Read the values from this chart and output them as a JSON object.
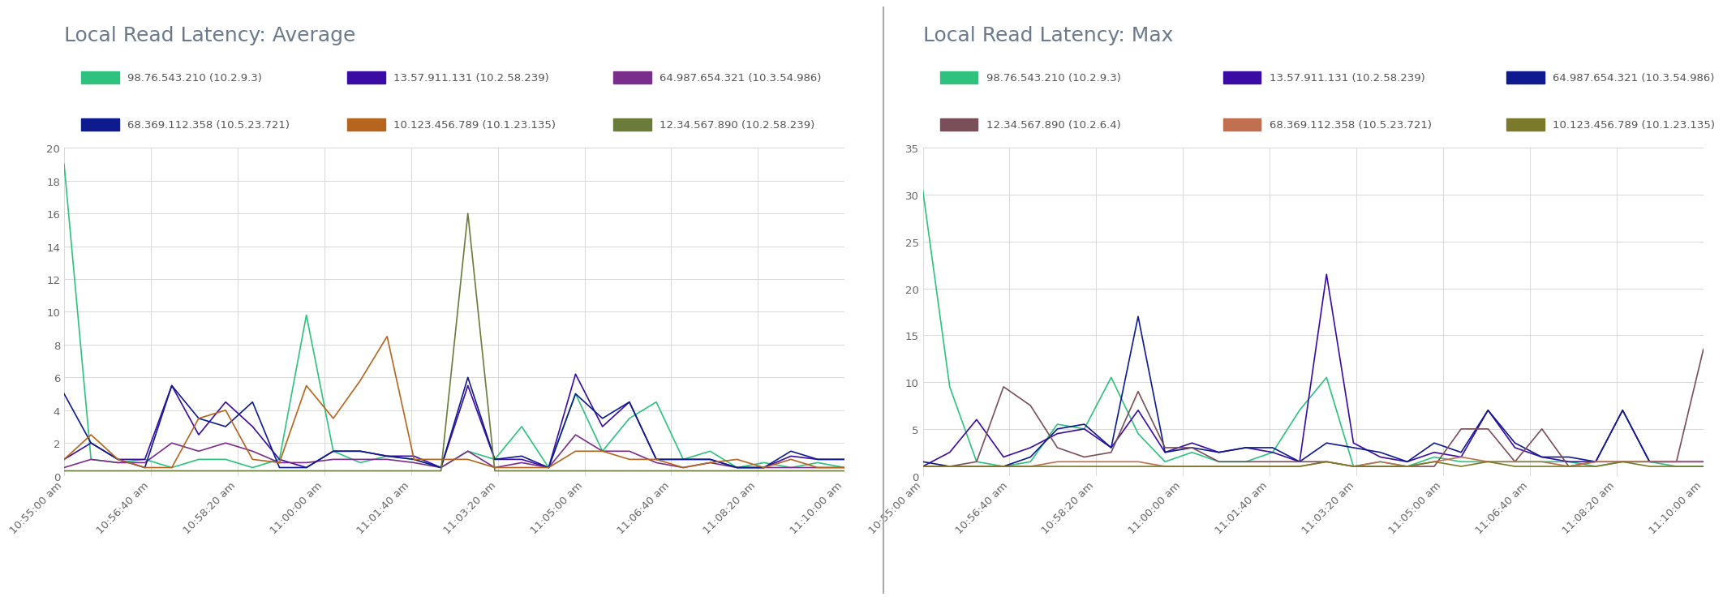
{
  "title_avg": "Local Read Latency: Average",
  "title_max": "Local Read Latency: Max",
  "title_color": "#6b7a8d",
  "background_color": "#ffffff",
  "grid_color": "#d8d8d8",
  "x_labels": [
    "10:55:00 am",
    "10:56:40 am",
    "10:58:20 am",
    "11:00:00 am",
    "11:01:40 am",
    "11:03:20 am",
    "11:05:00 am",
    "11:06:40 am",
    "11:08:20 am",
    "11:10:00 am"
  ],
  "avg_ylim": [
    0,
    20
  ],
  "avg_yticks": [
    0,
    2,
    4,
    6,
    8,
    10,
    12,
    14,
    16,
    18,
    20
  ],
  "max_ylim": [
    0,
    35
  ],
  "max_yticks": [
    0,
    5,
    10,
    15,
    20,
    25,
    30,
    35
  ],
  "legend_avg": [
    {
      "label": "98.76.543.210 (10.2.9.3)",
      "color": "#2ec27e"
    },
    {
      "label": "13.57.911.131 (10.2.58.239)",
      "color": "#3a0ca3"
    },
    {
      "label": "64.987.654.321 (10.3.54.986)",
      "color": "#7b2d8b"
    },
    {
      "label": "68.369.112.358 (10.5.23.721)",
      "color": "#0d1b8e"
    },
    {
      "label": "10.123.456.789 (10.1.23.135)",
      "color": "#b5651d"
    },
    {
      "label": "12.34.567.890 (10.2.58.239)",
      "color": "#6b7c3a"
    }
  ],
  "legend_max": [
    {
      "label": "98.76.543.210 (10.2.9.3)",
      "color": "#2ec27e"
    },
    {
      "label": "13.57.911.131 (10.2.58.239)",
      "color": "#3a0ca3"
    },
    {
      "label": "64.987.654.321 (10.3.54.986)",
      "color": "#0d1b8e"
    },
    {
      "label": "12.34.567.890 (10.2.6.4)",
      "color": "#7a4f5a"
    },
    {
      "label": "68.369.112.358 (10.5.23.721)",
      "color": "#c07050"
    },
    {
      "label": "10.123.456.789 (10.1.23.135)",
      "color": "#7a7a2a"
    }
  ],
  "avg_series": {
    "s0": [
      19.0,
      1.0,
      0.8,
      1.0,
      0.5,
      1.0,
      1.0,
      0.5,
      1.0,
      9.8,
      1.5,
      0.8,
      1.2,
      1.0,
      0.5,
      1.5,
      1.0,
      3.0,
      0.5,
      5.0,
      1.5,
      3.5,
      4.5,
      1.0,
      1.5,
      0.5,
      0.8,
      0.5,
      0.8,
      0.5
    ],
    "s1": [
      1.0,
      2.0,
      1.0,
      1.0,
      5.5,
      2.5,
      4.5,
      3.0,
      1.0,
      0.5,
      1.5,
      1.5,
      1.2,
      1.2,
      0.5,
      5.5,
      1.0,
      1.0,
      0.5,
      6.2,
      3.0,
      4.5,
      1.0,
      1.0,
      1.0,
      0.5,
      0.5,
      1.2,
      1.0,
      1.0
    ],
    "s2": [
      0.5,
      1.0,
      0.8,
      0.8,
      2.0,
      1.5,
      2.0,
      1.5,
      0.8,
      0.8,
      1.0,
      1.0,
      1.0,
      0.8,
      0.5,
      1.5,
      0.5,
      0.8,
      0.5,
      2.5,
      1.5,
      1.5,
      0.8,
      0.5,
      0.8,
      0.5,
      0.5,
      0.5,
      0.5,
      0.5
    ],
    "s3": [
      5.0,
      2.0,
      1.0,
      0.5,
      5.5,
      3.5,
      3.0,
      4.5,
      0.5,
      0.5,
      1.5,
      1.5,
      1.2,
      1.0,
      0.5,
      6.0,
      1.0,
      1.2,
      0.5,
      5.0,
      3.5,
      4.5,
      1.0,
      1.0,
      1.0,
      0.5,
      0.5,
      1.5,
      1.0,
      1.0
    ],
    "s4": [
      1.0,
      2.5,
      1.0,
      0.5,
      0.5,
      3.5,
      4.0,
      1.0,
      0.8,
      5.5,
      3.5,
      5.8,
      8.5,
      1.0,
      1.0,
      1.0,
      0.5,
      0.5,
      0.5,
      1.5,
      1.5,
      1.0,
      1.0,
      0.5,
      0.8,
      1.0,
      0.5,
      1.0,
      0.5,
      0.5
    ],
    "s5": [
      0.3,
      0.3,
      0.3,
      0.3,
      0.3,
      0.3,
      0.3,
      0.3,
      0.3,
      0.3,
      0.3,
      0.3,
      0.3,
      0.3,
      0.3,
      16.0,
      0.3,
      0.3,
      0.3,
      0.3,
      0.3,
      0.3,
      0.3,
      0.3,
      0.3,
      0.3,
      0.3,
      0.3,
      0.3,
      0.3
    ]
  },
  "max_series": {
    "s0": [
      30.5,
      9.5,
      1.5,
      1.0,
      1.5,
      5.5,
      5.0,
      10.5,
      4.5,
      1.5,
      2.5,
      1.5,
      1.5,
      2.5,
      7.0,
      10.5,
      1.0,
      1.5,
      1.0,
      2.0,
      1.5,
      1.5,
      1.5,
      1.5,
      1.5,
      1.0,
      1.5,
      1.5,
      1.0,
      1.0
    ],
    "s1": [
      1.0,
      2.5,
      6.0,
      2.0,
      3.0,
      4.5,
      5.0,
      3.0,
      7.0,
      2.5,
      3.5,
      2.5,
      3.0,
      2.5,
      1.5,
      21.5,
      3.5,
      2.0,
      1.5,
      2.5,
      2.0,
      7.0,
      3.0,
      2.0,
      1.5,
      1.5,
      7.0,
      1.5,
      1.5,
      1.5
    ],
    "s2": [
      1.5,
      1.0,
      1.0,
      1.0,
      2.0,
      5.0,
      5.5,
      3.0,
      17.0,
      2.5,
      3.0,
      2.5,
      3.0,
      3.0,
      1.5,
      3.5,
      3.0,
      2.5,
      1.5,
      3.5,
      2.5,
      7.0,
      3.5,
      2.0,
      2.0,
      1.5,
      7.0,
      1.5,
      1.5,
      1.5
    ],
    "s3": [
      1.0,
      1.0,
      1.5,
      9.5,
      7.5,
      3.0,
      2.0,
      2.5,
      9.0,
      3.0,
      3.0,
      1.5,
      1.5,
      1.5,
      1.5,
      1.5,
      1.0,
      1.0,
      1.0,
      1.0,
      5.0,
      5.0,
      1.5,
      5.0,
      1.0,
      1.5,
      1.5,
      1.5,
      1.5,
      13.5
    ],
    "s4": [
      1.0,
      1.0,
      1.0,
      1.0,
      1.0,
      1.5,
      1.5,
      1.5,
      1.5,
      1.0,
      1.0,
      1.0,
      1.0,
      1.0,
      1.0,
      1.5,
      1.0,
      1.5,
      1.0,
      1.5,
      2.0,
      1.5,
      1.5,
      1.5,
      1.0,
      1.5,
      1.5,
      1.5,
      1.5,
      1.5
    ],
    "s5": [
      1.0,
      1.0,
      1.0,
      1.0,
      1.0,
      1.0,
      1.0,
      1.0,
      1.0,
      1.0,
      1.0,
      1.0,
      1.0,
      1.0,
      1.0,
      1.5,
      1.0,
      1.0,
      1.0,
      1.5,
      1.0,
      1.5,
      1.0,
      1.0,
      1.0,
      1.0,
      1.5,
      1.0,
      1.0,
      1.0
    ]
  },
  "divider_color": "#aaaaaa",
  "line_width": 1.2,
  "tick_color": "#666666",
  "label_fontsize": 9.5,
  "title_fontsize": 18,
  "legend_fontsize": 9.5
}
